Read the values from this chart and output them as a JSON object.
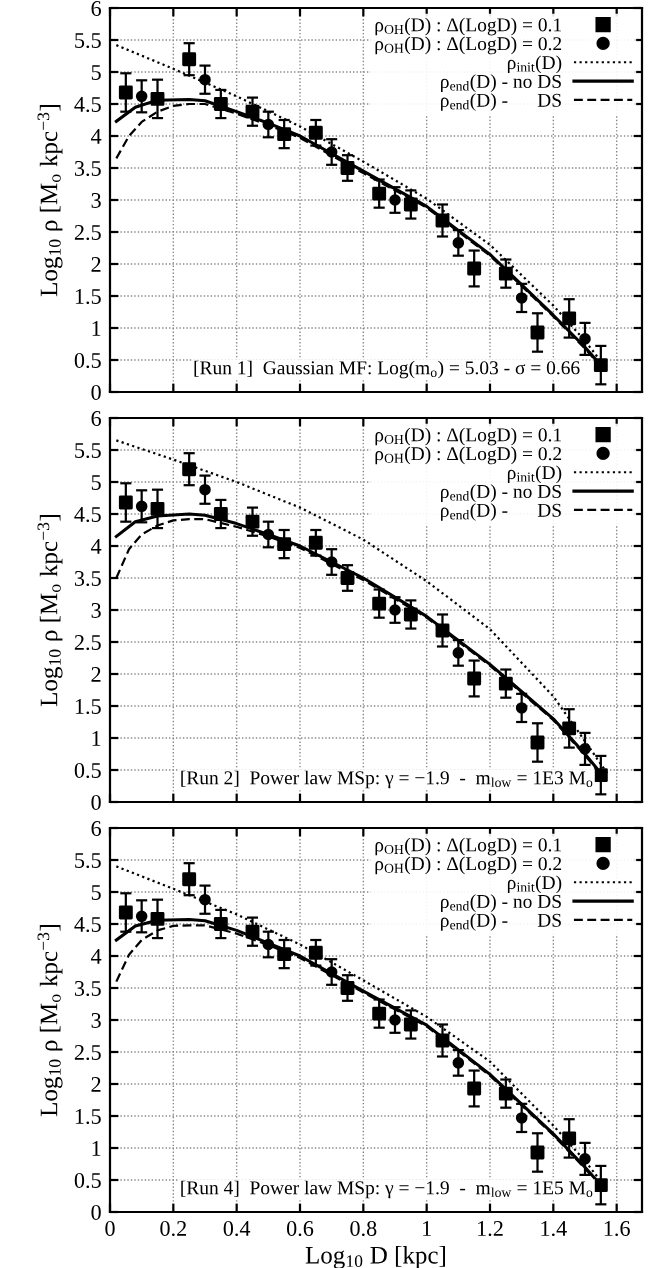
{
  "chart_data": [
    {
      "type": "scatter",
      "ylabel": "Log$_{10}$ ρ [M$_{o}$ kpc$^{−3}$]",
      "annotations": [
        "[Run 1]  Gaussian MF: Log(m$_{o}$) = 5.03 - σ = 0.66"
      ],
      "xlim": [
        0,
        1.68
      ],
      "ylim": [
        0,
        6
      ],
      "xticks": [
        0,
        0.2,
        0.4,
        0.6,
        0.8,
        1,
        1.2,
        1.4,
        1.6
      ],
      "yticks": [
        0,
        0.5,
        1,
        1.5,
        2,
        2.5,
        3,
        3.5,
        4,
        4.5,
        5,
        5.5,
        6
      ],
      "tick_labels": "y",
      "grid": true,
      "legend": "top right",
      "series": [
        {
          "name": "ρ$_{OH}$(D) : Δ(LogD) = 0.1",
          "marker": "square",
          "color": "#000000",
          "x": [
            0.05,
            0.15,
            0.25,
            0.35,
            0.45,
            0.55,
            0.65,
            0.75,
            0.85,
            0.95,
            1.05,
            1.15,
            1.25,
            1.35,
            1.45,
            1.55
          ],
          "values": [
            4.68,
            4.58,
            5.2,
            4.5,
            4.38,
            4.03,
            4.05,
            3.5,
            3.1,
            2.93,
            2.68,
            1.93,
            1.85,
            0.93,
            1.15,
            0.42
          ],
          "errors": [
            0.3,
            0.3,
            0.25,
            0.22,
            0.22,
            0.22,
            0.2,
            0.2,
            0.22,
            0.22,
            0.25,
            0.28,
            0.22,
            0.3,
            0.3,
            0.3
          ]
        },
        {
          "name": "ρ$_{OH}$(D) : Δ(LogD) = 0.2",
          "marker": "circle",
          "color": "#000000",
          "x": [
            0.1,
            0.3,
            0.5,
            0.7,
            0.9,
            1.1,
            1.3,
            1.5
          ],
          "values": [
            4.62,
            4.88,
            4.18,
            3.75,
            3.0,
            2.33,
            1.47,
            0.83
          ],
          "errors": [
            0.25,
            0.22,
            0.2,
            0.2,
            0.2,
            0.2,
            0.22,
            0.25
          ]
        },
        {
          "name": "ρ$_{init}$(D)",
          "type": "line",
          "line_style": "dotted",
          "marker": "none",
          "color": "#000000",
          "x": [
            0.02,
            0.2,
            0.4,
            0.6,
            0.8,
            1.0,
            1.2,
            1.4,
            1.5,
            1.55
          ],
          "values": [
            5.42,
            5.05,
            4.62,
            4.15,
            3.6,
            3.02,
            2.3,
            1.35,
            0.8,
            0.48
          ]
        },
        {
          "name": "ρ$_{end}$(D) - no DS",
          "type": "line",
          "line_style": "solid",
          "marker": "none",
          "color": "#000000",
          "x": [
            0.02,
            0.08,
            0.15,
            0.25,
            0.3,
            0.4,
            0.5,
            0.6,
            0.8,
            1.0,
            1.2,
            1.4,
            1.5,
            1.55
          ],
          "values": [
            4.23,
            4.45,
            4.56,
            4.57,
            4.55,
            4.38,
            4.2,
            4.0,
            3.45,
            2.9,
            2.15,
            1.2,
            0.7,
            0.42
          ]
        },
        {
          "name": "ρ$_{end}$(D) -      DS",
          "type": "line",
          "line_style": "dashed",
          "marker": "none",
          "color": "#000000",
          "x": [
            0.02,
            0.06,
            0.1,
            0.15,
            0.2,
            0.25,
            0.3,
            0.4,
            0.5,
            0.6,
            0.8,
            1.0,
            1.2,
            1.4,
            1.5,
            1.55
          ],
          "values": [
            3.65,
            4.0,
            4.22,
            4.38,
            4.47,
            4.5,
            4.5,
            4.35,
            4.17,
            3.97,
            3.42,
            2.88,
            2.13,
            1.18,
            0.68,
            0.4
          ]
        }
      ]
    },
    {
      "type": "scatter",
      "ylabel": "Log$_{10}$ ρ [M$_{o}$ kpc$^{−3}$]",
      "annotations": [
        "[Run 2]  Power law MSp: γ = −1.9  -  m$_{low}$ = 1E3 M$_{o}$"
      ],
      "xlim": [
        0,
        1.68
      ],
      "ylim": [
        0,
        6
      ],
      "xticks": [
        0,
        0.2,
        0.4,
        0.6,
        0.8,
        1,
        1.2,
        1.4,
        1.6
      ],
      "yticks": [
        0,
        0.5,
        1,
        1.5,
        2,
        2.5,
        3,
        3.5,
        4,
        4.5,
        5,
        5.5,
        6
      ],
      "tick_labels": "y",
      "grid": true,
      "legend": "top right",
      "series": [
        {
          "name": "ρ$_{OH}$(D) : Δ(LogD) = 0.1",
          "marker": "square",
          "color": "#000000",
          "x": [
            0.05,
            0.15,
            0.25,
            0.35,
            0.45,
            0.55,
            0.65,
            0.75,
            0.85,
            0.95,
            1.05,
            1.15,
            1.25,
            1.35,
            1.45,
            1.55
          ],
          "values": [
            4.68,
            4.58,
            5.2,
            4.5,
            4.38,
            4.03,
            4.05,
            3.5,
            3.1,
            2.93,
            2.68,
            1.93,
            1.85,
            0.93,
            1.15,
            0.42
          ],
          "errors": [
            0.3,
            0.3,
            0.25,
            0.22,
            0.22,
            0.22,
            0.2,
            0.2,
            0.22,
            0.22,
            0.25,
            0.28,
            0.22,
            0.3,
            0.3,
            0.3
          ]
        },
        {
          "name": "ρ$_{OH}$(D) : Δ(LogD) = 0.2",
          "marker": "circle",
          "color": "#000000",
          "x": [
            0.1,
            0.3,
            0.5,
            0.7,
            0.9,
            1.1,
            1.3,
            1.5
          ],
          "values": [
            4.62,
            4.88,
            4.18,
            3.75,
            3.0,
            2.33,
            1.47,
            0.83
          ],
          "errors": [
            0.25,
            0.22,
            0.2,
            0.2,
            0.2,
            0.2,
            0.22,
            0.25
          ]
        },
        {
          "name": "ρ$_{init}$(D)",
          "type": "line",
          "line_style": "dotted",
          "marker": "none",
          "color": "#000000",
          "x": [
            0.02,
            0.2,
            0.4,
            0.6,
            0.8,
            1.0,
            1.2,
            1.4,
            1.5,
            1.57
          ],
          "values": [
            5.65,
            5.35,
            5.0,
            4.6,
            4.1,
            3.45,
            2.7,
            1.65,
            0.95,
            0.45
          ]
        },
        {
          "name": "ρ$_{end}$(D) - no DS",
          "type": "line",
          "line_style": "solid",
          "marker": "none",
          "color": "#000000",
          "x": [
            0.02,
            0.08,
            0.15,
            0.25,
            0.3,
            0.4,
            0.5,
            0.6,
            0.8,
            1.0,
            1.2,
            1.4,
            1.5,
            1.55
          ],
          "values": [
            4.15,
            4.38,
            4.47,
            4.5,
            4.48,
            4.35,
            4.18,
            4.0,
            3.5,
            2.9,
            2.15,
            1.3,
            0.75,
            0.45
          ]
        },
        {
          "name": "ρ$_{end}$(D) -      DS",
          "type": "line",
          "line_style": "dashed",
          "marker": "none",
          "color": "#000000",
          "x": [
            0.02,
            0.06,
            0.1,
            0.15,
            0.2,
            0.25,
            0.3,
            0.4,
            0.5,
            0.6,
            0.8,
            1.0,
            1.2,
            1.4,
            1.5,
            1.55
          ],
          "values": [
            3.5,
            3.95,
            4.18,
            4.32,
            4.4,
            4.42,
            4.42,
            4.3,
            4.15,
            3.97,
            3.47,
            2.88,
            2.13,
            1.28,
            0.73,
            0.43
          ]
        }
      ]
    },
    {
      "type": "scatter",
      "xlabel": "Log$_{10}$ D [kpc]",
      "ylabel": "Log$_{10}$ ρ [M$_{o}$ kpc$^{−3}$]",
      "annotations": [
        "[Run 4]  Power law MSp: γ = −1.9  -  m$_{low}$ = 1E5 M$_{o}$"
      ],
      "xlim": [
        0,
        1.68
      ],
      "ylim": [
        0,
        6
      ],
      "xticks": [
        0,
        0.2,
        0.4,
        0.6,
        0.8,
        1,
        1.2,
        1.4,
        1.6
      ],
      "yticks": [
        0,
        0.5,
        1,
        1.5,
        2,
        2.5,
        3,
        3.5,
        4,
        4.5,
        5,
        5.5,
        6
      ],
      "grid": true,
      "legend": "top right",
      "series": [
        {
          "name": "ρ$_{OH}$(D) : Δ(LogD) = 0.1",
          "marker": "square",
          "color": "#000000",
          "x": [
            0.05,
            0.15,
            0.25,
            0.35,
            0.45,
            0.55,
            0.65,
            0.75,
            0.85,
            0.95,
            1.05,
            1.15,
            1.25,
            1.35,
            1.45,
            1.55
          ],
          "values": [
            4.68,
            4.58,
            5.2,
            4.5,
            4.38,
            4.03,
            4.05,
            3.5,
            3.1,
            2.93,
            2.68,
            1.93,
            1.85,
            0.93,
            1.15,
            0.42
          ],
          "errors": [
            0.3,
            0.3,
            0.25,
            0.22,
            0.22,
            0.22,
            0.2,
            0.2,
            0.22,
            0.22,
            0.25,
            0.28,
            0.22,
            0.3,
            0.3,
            0.3
          ]
        },
        {
          "name": "ρ$_{OH}$(D) : Δ(LogD) = 0.2",
          "marker": "circle",
          "color": "#000000",
          "x": [
            0.1,
            0.3,
            0.5,
            0.7,
            0.9,
            1.1,
            1.3,
            1.5
          ],
          "values": [
            4.62,
            4.88,
            4.18,
            3.75,
            3.0,
            2.33,
            1.47,
            0.83
          ],
          "errors": [
            0.25,
            0.22,
            0.2,
            0.2,
            0.2,
            0.2,
            0.22,
            0.25
          ]
        },
        {
          "name": "ρ$_{init}$(D)",
          "type": "line",
          "line_style": "dotted",
          "marker": "none",
          "color": "#000000",
          "x": [
            0.02,
            0.2,
            0.4,
            0.6,
            0.8,
            1.0,
            1.2,
            1.4,
            1.5,
            1.55
          ],
          "values": [
            5.4,
            5.05,
            4.65,
            4.18,
            3.62,
            3.05,
            2.35,
            1.35,
            0.8,
            0.48
          ]
        },
        {
          "name": "ρ$_{end}$(D) - no DS",
          "type": "line",
          "line_style": "solid",
          "marker": "none",
          "color": "#000000",
          "x": [
            0.02,
            0.08,
            0.15,
            0.25,
            0.3,
            0.4,
            0.5,
            0.6,
            0.8,
            1.0,
            1.2,
            1.4,
            1.5,
            1.55
          ],
          "values": [
            4.25,
            4.47,
            4.56,
            4.57,
            4.55,
            4.4,
            4.2,
            4.0,
            3.45,
            2.92,
            2.15,
            1.22,
            0.7,
            0.42
          ]
        },
        {
          "name": "ρ$_{end}$(D) -      DS",
          "type": "line",
          "line_style": "dashed",
          "marker": "none",
          "color": "#000000",
          "x": [
            0.02,
            0.06,
            0.1,
            0.15,
            0.2,
            0.25,
            0.3,
            0.4,
            0.5,
            0.6,
            0.8,
            1.0,
            1.2,
            1.4,
            1.5,
            1.55
          ],
          "values": [
            3.6,
            4.02,
            4.25,
            4.4,
            4.47,
            4.48,
            4.48,
            4.35,
            4.17,
            3.97,
            3.43,
            2.9,
            2.13,
            1.2,
            0.68,
            0.4
          ]
        }
      ]
    }
  ]
}
